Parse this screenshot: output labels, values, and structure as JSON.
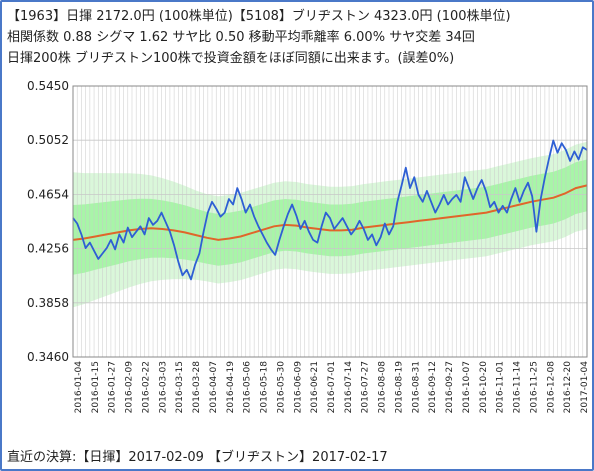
{
  "header": {
    "line1": "【1963】日揮  2172.0円 (100株単位)【5108】ブリヂストン 4323.0円 (100株単位)",
    "line2": "相関係数 0.88  シグマ 1.62  サヤ比 0.50  移動平均乖離率 6.00% サヤ交差 34回",
    "line3": "日揮200株 ブリヂストン100株で投資金額をほぼ同額に出来ます。(誤差0%)"
  },
  "footer": {
    "text": "直近の決算:【日揮】2017-02-09  【ブリヂストン】2017-02-17"
  },
  "colors": {
    "ratio_line": "#2e5fd4",
    "moving_average": "#e0662a",
    "inner_band": "#a8f5a8",
    "outer_band": "#daf7da",
    "grid": "#c8c8c8",
    "frame": "#4a78c8"
  },
  "chart_data": {
    "type": "line",
    "ylim": [
      0.346,
      0.545
    ],
    "y_ticks": [
      "0.5450",
      "0.5052",
      "0.4654",
      "0.4256",
      "0.3858",
      "0.3460"
    ],
    "x_tick_labels": [
      "2016-01-04",
      "2016-01-15",
      "2016-01-27",
      "2016-02-09",
      "2016-02-22",
      "2016-03-03",
      "2016-03-15",
      "2016-03-28",
      "2016-04-07",
      "2016-04-19",
      "2016-05-06",
      "2016-05-18",
      "2016-05-30",
      "2016-06-09",
      "2016-06-21",
      "2016-07-01",
      "2016-07-14",
      "2016-07-27",
      "2016-08-08",
      "2016-08-19",
      "2016-08-31",
      "2016-09-12",
      "2016-09-27",
      "2016-10-07",
      "2016-10-20",
      "2016-11-01",
      "2016-11-14",
      "2016-11-25",
      "2016-12-08",
      "2016-12-20",
      "2017-01-04"
    ],
    "series": [
      {
        "values": [
          0.448,
          0.444,
          0.436,
          0.426,
          0.43,
          0.424,
          0.418,
          0.422,
          0.426,
          0.432,
          0.425,
          0.436,
          0.43,
          0.441,
          0.434,
          0.438,
          0.442,
          0.436,
          0.448,
          0.443,
          0.446,
          0.452,
          0.445,
          0.438,
          0.428,
          0.416,
          0.406,
          0.41,
          0.403,
          0.414,
          0.422,
          0.438,
          0.452,
          0.46,
          0.455,
          0.449,
          0.452,
          0.462,
          0.458,
          0.47,
          0.462,
          0.452,
          0.458,
          0.449,
          0.442,
          0.436,
          0.43,
          0.425,
          0.421,
          0.432,
          0.442,
          0.451,
          0.458,
          0.45,
          0.44,
          0.446,
          0.438,
          0.432,
          0.43,
          0.442,
          0.452,
          0.448,
          0.44,
          0.444,
          0.448,
          0.442,
          0.436,
          0.44,
          0.446,
          0.44,
          0.432,
          0.436,
          0.428,
          0.434,
          0.444,
          0.436,
          0.442,
          0.46,
          0.472,
          0.485,
          0.47,
          0.478,
          0.465,
          0.46,
          0.468,
          0.46,
          0.452,
          0.458,
          0.465,
          0.458,
          0.462,
          0.465,
          0.46,
          0.478,
          0.47,
          0.462,
          0.47,
          0.476,
          0.468,
          0.456,
          0.46,
          0.452,
          0.457,
          0.452,
          0.462,
          0.47,
          0.46,
          0.468,
          0.474,
          0.464,
          0.438,
          0.462,
          0.478,
          0.492,
          0.505,
          0.496,
          0.503,
          0.498,
          0.49,
          0.497,
          0.491,
          0.5,
          0.498
        ]
      },
      {
        "values": [
          0.432,
          0.433,
          0.4345,
          0.436,
          0.4375,
          0.439,
          0.44,
          0.4405,
          0.44,
          0.439,
          0.4375,
          0.4355,
          0.4335,
          0.432,
          0.433,
          0.4345,
          0.437,
          0.4395,
          0.442,
          0.443,
          0.4425,
          0.441,
          0.44,
          0.439,
          0.439,
          0.4395,
          0.441,
          0.442,
          0.443,
          0.444,
          0.445,
          0.446,
          0.447,
          0.448,
          0.449,
          0.45,
          0.451,
          0.452,
          0.454,
          0.456,
          0.458,
          0.46,
          0.4615,
          0.463,
          0.466,
          0.47,
          0.472
        ]
      }
    ]
  }
}
